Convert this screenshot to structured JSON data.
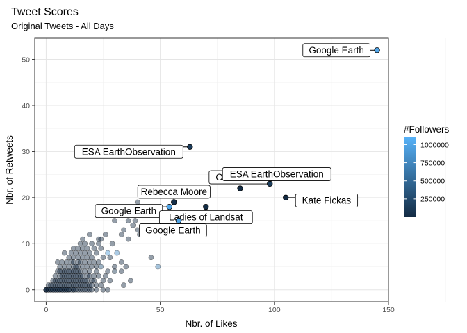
{
  "title": "Tweet Scores",
  "subtitle": "Original Tweets - All Days",
  "chart_data": {
    "type": "scatter",
    "xlabel": "Nbr. of Likes",
    "ylabel": "Nbr. of Retweets",
    "xlim": [
      -5,
      150
    ],
    "ylim": [
      -2.6,
      54.6
    ],
    "x_ticks": [
      0,
      50,
      100,
      150
    ],
    "y_ticks": [
      0,
      10,
      20,
      30,
      40,
      50
    ],
    "grid": true,
    "legend": {
      "title": "#Followers",
      "position": "right",
      "breaks": [
        250000,
        500000,
        750000,
        1000000
      ],
      "labels": [
        "250000",
        "500000",
        "750000",
        "1000000"
      ],
      "range": [
        0,
        1100000
      ],
      "colors": {
        "low": "#132B43",
        "high": "#56B1F7"
      }
    },
    "labeled_points": [
      {
        "name": "Google Earth",
        "x": 145,
        "y": 52,
        "followers": 1000000
      },
      {
        "name": "ESA EarthObservation",
        "x": 63,
        "y": 31,
        "followers": 150000
      },
      {
        "name": "Ollie Wearn",
        "x": 85,
        "y": 22,
        "followers": 5000
      },
      {
        "name": "ESA EarthObservation",
        "x": 98,
        "y": 23,
        "followers": 150000
      },
      {
        "name": "Kate Fickas",
        "x": 105,
        "y": 20,
        "followers": 3000
      },
      {
        "name": "Rebecca Moore",
        "x": 56,
        "y": 19,
        "followers": 30000
      },
      {
        "name": "Google Earth",
        "x": 54,
        "y": 18,
        "followers": 1000000
      },
      {
        "name": "Ladies of Landsat",
        "x": 70,
        "y": 18,
        "followers": 20000
      },
      {
        "name": "Google Earth",
        "x": 58,
        "y": 15,
        "followers": 1000000
      }
    ],
    "points": [
      [
        0,
        0,
        500
      ],
      [
        0,
        0,
        1200
      ],
      [
        0,
        0,
        3000
      ],
      [
        0,
        0,
        800
      ],
      [
        1,
        0,
        2000
      ],
      [
        1,
        0,
        600
      ],
      [
        2,
        0,
        4000
      ],
      [
        2,
        0,
        900
      ],
      [
        3,
        0,
        1500
      ],
      [
        3,
        0,
        700
      ],
      [
        4,
        0,
        2500
      ],
      [
        4,
        0,
        300
      ],
      [
        5,
        0,
        5000
      ],
      [
        5,
        0,
        1100
      ],
      [
        6,
        0,
        800
      ],
      [
        6,
        0,
        3500
      ],
      [
        7,
        0,
        2200
      ],
      [
        7,
        0,
        600
      ],
      [
        8,
        0,
        1800
      ],
      [
        8,
        0,
        400
      ],
      [
        9,
        0,
        6000
      ],
      [
        9,
        0,
        1300
      ],
      [
        10,
        0,
        2700
      ],
      [
        10,
        0,
        500
      ],
      [
        11,
        0,
        900
      ],
      [
        12,
        0,
        3100
      ],
      [
        12,
        0,
        700
      ],
      [
        13,
        0,
        1600
      ],
      [
        14,
        0,
        2400
      ],
      [
        15,
        0,
        800
      ],
      [
        16,
        0,
        1900
      ],
      [
        17,
        0,
        600
      ],
      [
        18,
        0,
        4100
      ],
      [
        19,
        0,
        1200
      ],
      [
        20,
        0,
        2300
      ],
      [
        2,
        1,
        1500
      ],
      [
        3,
        1,
        2100
      ],
      [
        4,
        1,
        800
      ],
      [
        5,
        1,
        3000
      ],
      [
        6,
        1,
        1200
      ],
      [
        7,
        1,
        600
      ],
      [
        8,
        1,
        5000
      ],
      [
        9,
        1,
        1700
      ],
      [
        10,
        1,
        900
      ],
      [
        11,
        1,
        2600
      ],
      [
        12,
        1,
        1300
      ],
      [
        13,
        1,
        700
      ],
      [
        14,
        1,
        3800
      ],
      [
        15,
        1,
        1100
      ],
      [
        16,
        1,
        400
      ],
      [
        17,
        1,
        2200
      ],
      [
        18,
        1,
        900
      ],
      [
        19,
        1,
        1600
      ],
      [
        20,
        1,
        3300
      ],
      [
        22,
        1,
        1000
      ],
      [
        24,
        1,
        2000
      ],
      [
        1,
        1,
        500
      ],
      [
        3,
        2,
        1800
      ],
      [
        4,
        2,
        900
      ],
      [
        5,
        2,
        2500
      ],
      [
        6,
        2,
        700
      ],
      [
        7,
        2,
        4200
      ],
      [
        8,
        2,
        1400
      ],
      [
        9,
        2,
        600
      ],
      [
        10,
        2,
        3100
      ],
      [
        11,
        2,
        1200
      ],
      [
        12,
        2,
        800
      ],
      [
        13,
        2,
        2700
      ],
      [
        14,
        2,
        1500
      ],
      [
        15,
        2,
        500
      ],
      [
        16,
        2,
        3600
      ],
      [
        17,
        2,
        1300
      ],
      [
        18,
        2,
        700
      ],
      [
        20,
        2,
        2100
      ],
      [
        21,
        2,
        900
      ],
      [
        25,
        2,
        1800
      ],
      [
        28,
        2,
        3000
      ],
      [
        4,
        3,
        1200
      ],
      [
        6,
        3,
        2600
      ],
      [
        7,
        3,
        800
      ],
      [
        8,
        3,
        1900
      ],
      [
        9,
        3,
        4400
      ],
      [
        10,
        3,
        1000
      ],
      [
        11,
        3,
        2300
      ],
      [
        12,
        3,
        600
      ],
      [
        13,
        3,
        3300
      ],
      [
        14,
        3,
        1400
      ],
      [
        15,
        3,
        900
      ],
      [
        16,
        3,
        2000
      ],
      [
        18,
        3,
        1100
      ],
      [
        19,
        3,
        3500
      ],
      [
        21,
        3,
        1600
      ],
      [
        23,
        3,
        700
      ],
      [
        26,
        3,
        2400
      ],
      [
        5,
        4,
        1300
      ],
      [
        7,
        4,
        2900
      ],
      [
        8,
        4,
        700
      ],
      [
        9,
        4,
        2000
      ],
      [
        10,
        4,
        1100
      ],
      [
        11,
        4,
        3700
      ],
      [
        12,
        4,
        800
      ],
      [
        13,
        4,
        1900
      ],
      [
        14,
        4,
        2600
      ],
      [
        15,
        4,
        1000
      ],
      [
        17,
        4,
        1500
      ],
      [
        19,
        4,
        2300
      ],
      [
        22,
        4,
        1200
      ],
      [
        27,
        4,
        3100
      ],
      [
        30,
        4,
        95000
      ],
      [
        6,
        5,
        1600
      ],
      [
        8,
        5,
        2800
      ],
      [
        10,
        5,
        900
      ],
      [
        12,
        5,
        2100
      ],
      [
        13,
        5,
        1400
      ],
      [
        14,
        5,
        3200
      ],
      [
        16,
        5,
        800
      ],
      [
        18,
        5,
        2500
      ],
      [
        20,
        5,
        1200
      ],
      [
        22,
        5,
        1800
      ],
      [
        24,
        5,
        350000
      ],
      [
        30,
        5,
        2100
      ],
      [
        35,
        5,
        1600
      ],
      [
        7,
        6,
        2200
      ],
      [
        9,
        6,
        1100
      ],
      [
        11,
        6,
        3000
      ],
      [
        12,
        6,
        700
      ],
      [
        14,
        6,
        1900
      ],
      [
        15,
        6,
        2600
      ],
      [
        17,
        6,
        1400
      ],
      [
        19,
        6,
        800
      ],
      [
        21,
        6,
        2000
      ],
      [
        23,
        6,
        1500
      ],
      [
        10,
        7,
        1700
      ],
      [
        12,
        7,
        2700
      ],
      [
        14,
        7,
        900
      ],
      [
        16,
        7,
        2300
      ],
      [
        18,
        7,
        1200
      ],
      [
        20,
        7,
        3100
      ],
      [
        25,
        7,
        1600
      ],
      [
        28,
        7,
        2000
      ],
      [
        11,
        8,
        1300
      ],
      [
        13,
        8,
        2400
      ],
      [
        15,
        8,
        700
      ],
      [
        17,
        8,
        1800
      ],
      [
        19,
        8,
        2900
      ],
      [
        22,
        8,
        1100
      ],
      [
        27,
        8,
        900000
      ],
      [
        31,
        8,
        800000
      ],
      [
        12,
        9,
        1900
      ],
      [
        14,
        9,
        1000
      ],
      [
        16,
        9,
        2500
      ],
      [
        18,
        9,
        1400
      ],
      [
        21,
        9,
        800
      ],
      [
        24,
        9,
        2200
      ],
      [
        15,
        10,
        2000
      ],
      [
        17,
        10,
        1300
      ],
      [
        20,
        10,
        2700
      ],
      [
        23,
        10,
        900
      ],
      [
        29,
        10,
        1600
      ],
      [
        23,
        11,
        1800
      ],
      [
        24,
        11,
        2400
      ],
      [
        26,
        12,
        1100
      ],
      [
        33,
        12,
        2000
      ],
      [
        30,
        15,
        1700
      ],
      [
        36,
        15,
        2300
      ],
      [
        40,
        19,
        2200
      ],
      [
        41,
        12,
        900
      ],
      [
        40,
        13,
        1600
      ],
      [
        38,
        14,
        2800
      ],
      [
        39,
        15,
        1000
      ],
      [
        34,
        13,
        2500
      ],
      [
        36,
        11,
        1800
      ],
      [
        49,
        5,
        700000
      ],
      [
        46,
        7,
        2000
      ],
      [
        33,
        4,
        1200
      ],
      [
        34,
        1,
        2600
      ],
      [
        33,
        6,
        1900
      ],
      [
        37,
        2,
        1500
      ],
      [
        22,
        0,
        2200
      ],
      [
        25,
        0,
        1300
      ],
      [
        27,
        0,
        800
      ],
      [
        16,
        11,
        1600
      ],
      [
        6,
        4,
        1800
      ],
      [
        8,
        8,
        2400
      ],
      [
        5,
        6,
        1100
      ],
      [
        19,
        12,
        1900
      ]
    ]
  }
}
